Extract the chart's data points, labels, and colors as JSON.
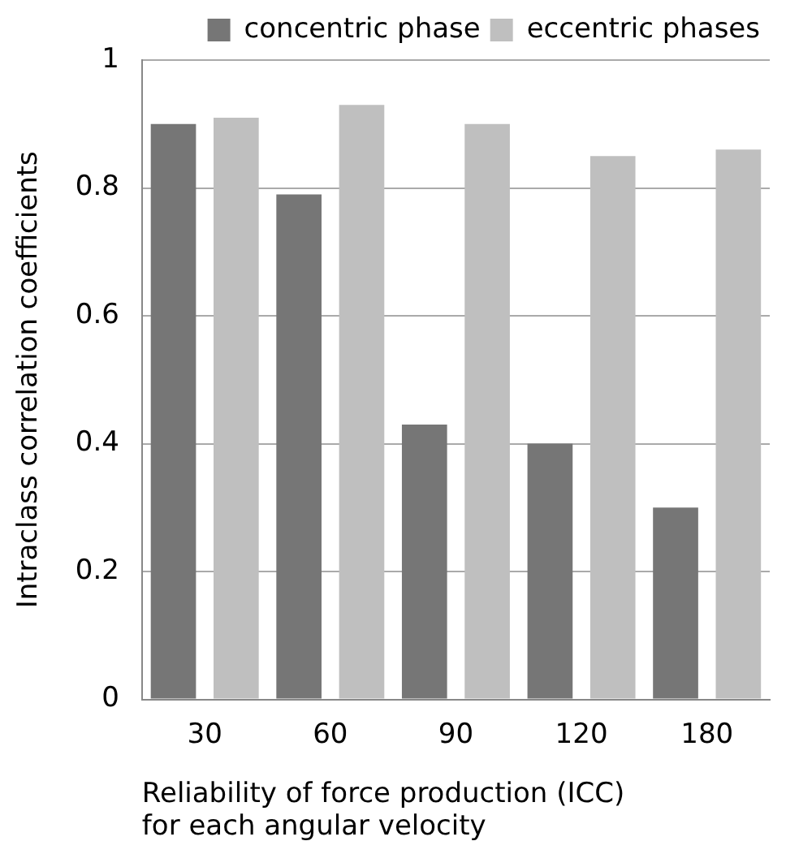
{
  "chart_data": {
    "type": "bar",
    "xlabel": "Reliability of force production (ICC) for each angular velocity",
    "ylabel": "Intraclass correlation coefficients",
    "categories": [
      "30",
      "60",
      "90",
      "120",
      "180"
    ],
    "series": [
      {
        "name": "concentric phase",
        "color": "#767676",
        "values": [
          0.9,
          0.79,
          0.43,
          0.4,
          0.3
        ]
      },
      {
        "name": "eccentric phases",
        "color": "#bfbfbf",
        "values": [
          0.91,
          0.93,
          0.9,
          0.85,
          0.86
        ]
      }
    ],
    "ylim": [
      0,
      1
    ],
    "yticks": [
      0,
      0.2,
      0.4,
      0.6,
      0.8,
      1
    ],
    "grid": "y",
    "legend": "top right"
  }
}
